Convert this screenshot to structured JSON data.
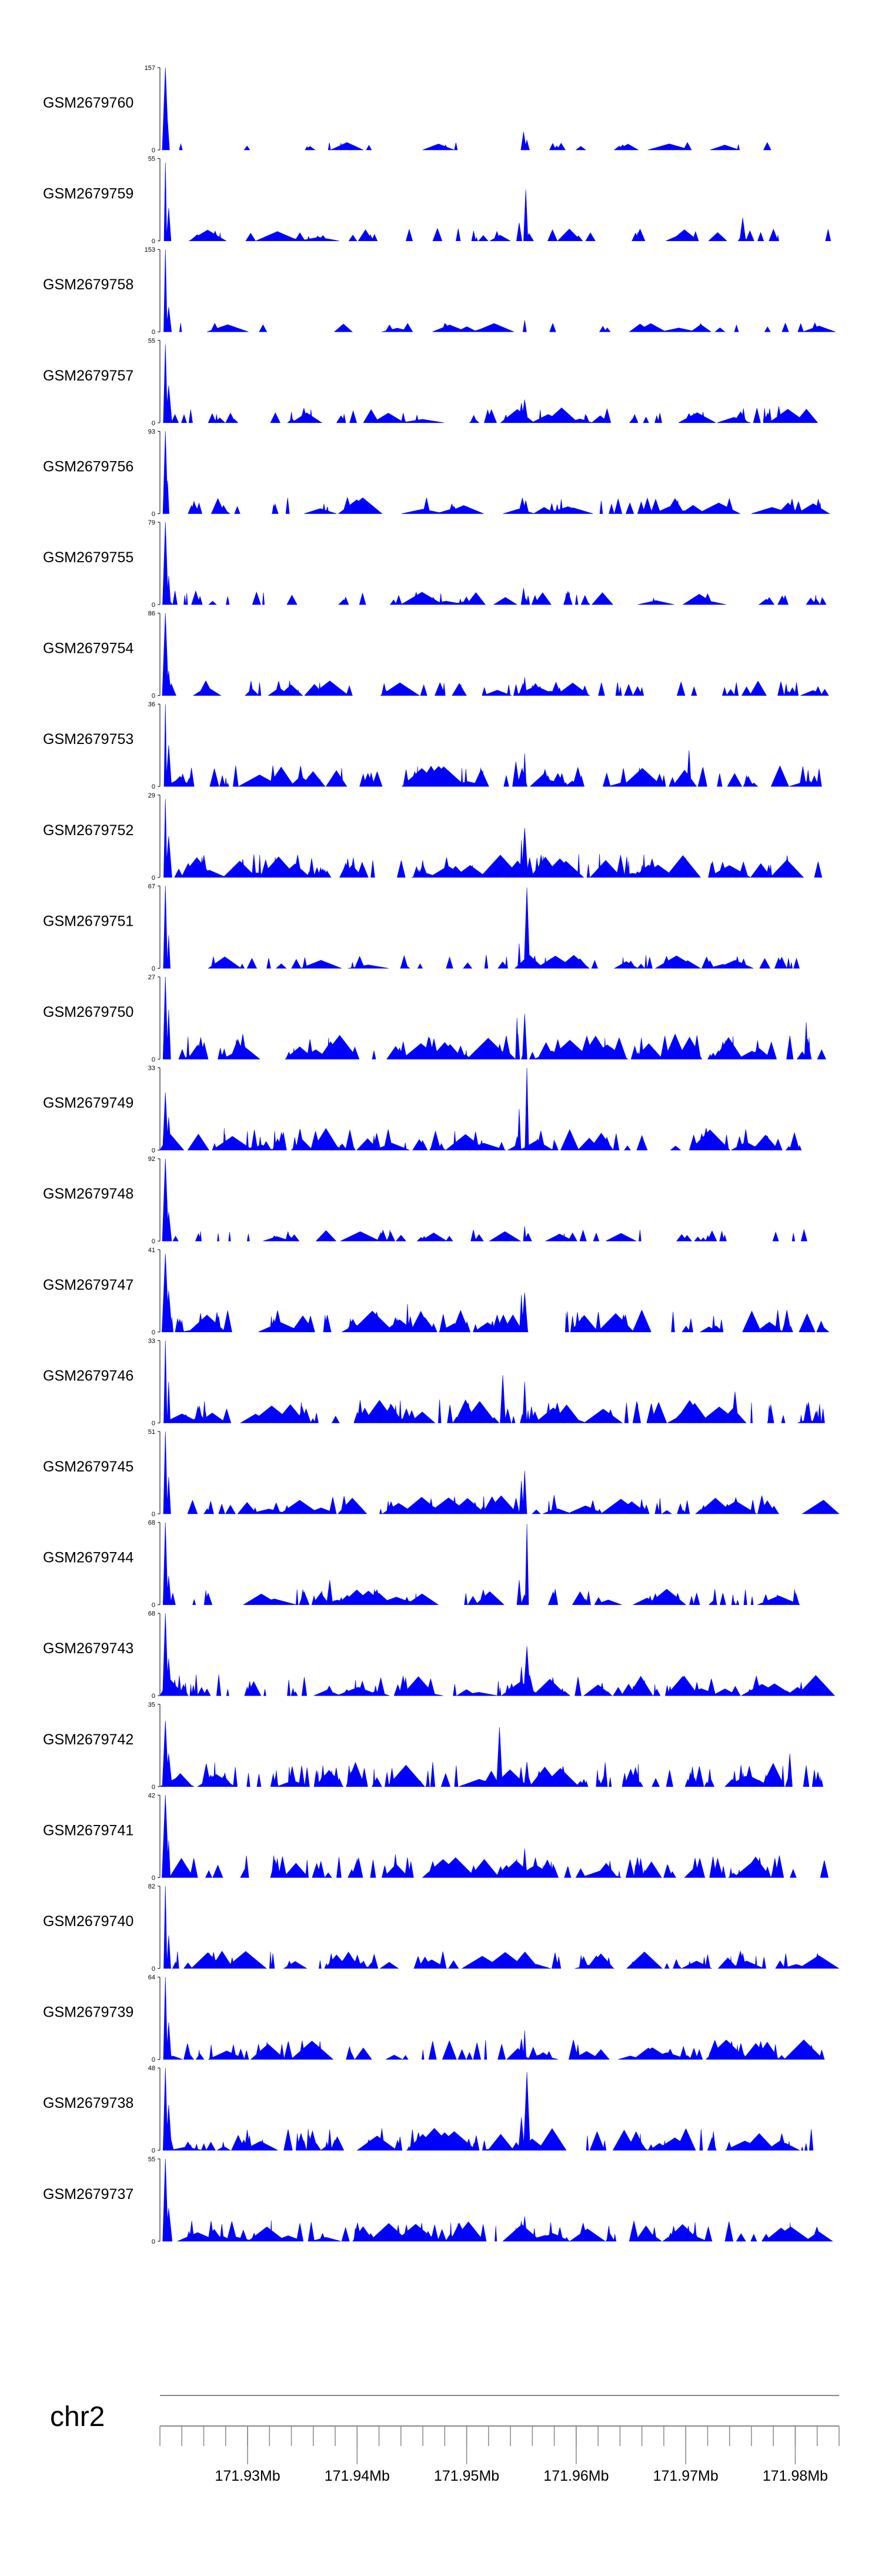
{
  "chart_data": {
    "type": "area",
    "chromosome": "chr2",
    "x_range": [
      171.922,
      171.984
    ],
    "x_ticks": [
      171.93,
      171.94,
      171.95,
      171.96,
      171.97,
      171.98
    ],
    "x_tick_labels": [
      "171.93Mb",
      "171.94Mb",
      "171.95Mb",
      "171.96Mb",
      "171.97Mb",
      "171.98Mb"
    ],
    "minor_tick_step": 0.002,
    "fill_color": "#0000ff",
    "series": [
      {
        "label": "GSM2679760",
        "ymax": 157,
        "ymin_label": "0",
        "ymax_label": "157",
        "seed": 60,
        "density": 0.4,
        "profile": [
          [
            171.9225,
            1.0
          ],
          [
            171.9227,
            0.35
          ],
          [
            171.9552,
            0.22
          ],
          [
            171.9555,
            0.12
          ],
          [
            171.9735,
            0.06
          ]
        ]
      },
      {
        "label": "GSM2679759",
        "ymax": 55,
        "ymin_label": "0",
        "ymax_label": "55",
        "seed": 59,
        "density": 0.8,
        "profile": [
          [
            171.9225,
            0.95
          ],
          [
            171.9228,
            0.4
          ],
          [
            171.9554,
            0.62
          ],
          [
            171.9548,
            0.22
          ],
          [
            171.9752,
            0.28
          ],
          [
            171.983,
            0.14
          ]
        ]
      },
      {
        "label": "GSM2679758",
        "ymax": 153,
        "ymin_label": "0",
        "ymax_label": "153",
        "seed": 58,
        "density": 0.5,
        "profile": [
          [
            171.9225,
            1.0
          ],
          [
            171.9228,
            0.3
          ],
          [
            171.9553,
            0.14
          ],
          [
            171.9805,
            0.1
          ]
        ]
      },
      {
        "label": "GSM2679757",
        "ymax": 55,
        "ymin_label": "0",
        "ymax_label": "55",
        "seed": 57,
        "density": 1.0,
        "profile": [
          [
            171.9225,
            0.95
          ],
          [
            171.9228,
            0.45
          ],
          [
            171.9553,
            0.28
          ],
          [
            171.955,
            0.24
          ],
          [
            171.9785,
            0.2
          ]
        ]
      },
      {
        "label": "GSM2679756",
        "ymax": 93,
        "ymin_label": "0",
        "ymax_label": "93",
        "seed": 56,
        "density": 1.1,
        "profile": [
          [
            171.9225,
            1.0
          ],
          [
            171.9227,
            0.4
          ],
          [
            171.9554,
            0.16
          ]
        ]
      },
      {
        "label": "GSM2679755",
        "ymax": 79,
        "ymin_label": "0",
        "ymax_label": "79",
        "seed": 55,
        "density": 0.9,
        "profile": [
          [
            171.9225,
            1.0
          ],
          [
            171.9228,
            0.35
          ],
          [
            171.9552,
            0.2
          ],
          [
            171.9405,
            0.14
          ]
        ]
      },
      {
        "label": "GSM2679754",
        "ymax": 86,
        "ymin_label": "0",
        "ymax_label": "86",
        "seed": 54,
        "density": 1.0,
        "profile": [
          [
            171.9225,
            1.0
          ],
          [
            171.9228,
            0.3
          ],
          [
            171.9553,
            0.22
          ],
          [
            171.956,
            0.12
          ]
        ]
      },
      {
        "label": "GSM2679753",
        "ymax": 36,
        "ymin_label": "0",
        "ymax_label": "36",
        "seed": 53,
        "density": 1.5,
        "profile": [
          [
            171.9225,
            1.0
          ],
          [
            171.9228,
            0.5
          ],
          [
            171.9553,
            0.4
          ],
          [
            171.9545,
            0.3
          ],
          [
            171.9703,
            0.44
          ]
        ]
      },
      {
        "label": "GSM2679752",
        "ymax": 29,
        "ymin_label": "0",
        "ymax_label": "29",
        "seed": 52,
        "density": 1.7,
        "profile": [
          [
            171.9225,
            0.95
          ],
          [
            171.9228,
            0.5
          ],
          [
            171.9553,
            0.6
          ],
          [
            171.955,
            0.45
          ]
        ]
      },
      {
        "label": "GSM2679751",
        "ymax": 67,
        "ymin_label": "0",
        "ymax_label": "67",
        "seed": 51,
        "density": 0.9,
        "profile": [
          [
            171.9225,
            1.0
          ],
          [
            171.9228,
            0.4
          ],
          [
            171.9555,
            0.98
          ],
          [
            171.9548,
            0.3
          ]
        ]
      },
      {
        "label": "GSM2679750",
        "ymax": 27,
        "ymin_label": "0",
        "ymax_label": "27",
        "seed": 50,
        "density": 1.9,
        "profile": [
          [
            171.9225,
            1.0
          ],
          [
            171.9228,
            0.6
          ],
          [
            171.9553,
            0.55
          ],
          [
            171.9546,
            0.5
          ],
          [
            171.981,
            0.45
          ]
        ]
      },
      {
        "label": "GSM2679749",
        "ymax": 33,
        "ymin_label": "0",
        "ymax_label": "33",
        "seed": 49,
        "density": 1.6,
        "profile": [
          [
            171.9225,
            0.7
          ],
          [
            171.9228,
            0.4
          ],
          [
            171.9555,
            1.0
          ],
          [
            171.9548,
            0.5
          ]
        ]
      },
      {
        "label": "GSM2679748",
        "ymax": 92,
        "ymin_label": "0",
        "ymax_label": "92",
        "seed": 48,
        "density": 0.8,
        "profile": [
          [
            171.9225,
            1.0
          ],
          [
            171.9228,
            0.35
          ],
          [
            171.9553,
            0.18
          ]
        ]
      },
      {
        "label": "GSM2679747",
        "ymax": 41,
        "ymin_label": "0",
        "ymax_label": "41",
        "seed": 47,
        "density": 1.6,
        "profile": [
          [
            171.9225,
            0.95
          ],
          [
            171.9228,
            0.5
          ],
          [
            171.9553,
            0.48
          ],
          [
            171.955,
            0.45
          ],
          [
            171.9446,
            0.34
          ]
        ]
      },
      {
        "label": "GSM2679746",
        "ymax": 33,
        "ymin_label": "0",
        "ymax_label": "33",
        "seed": 46,
        "density": 1.7,
        "profile": [
          [
            171.9225,
            1.0
          ],
          [
            171.9228,
            0.5
          ],
          [
            171.9533,
            0.58
          ],
          [
            171.9553,
            0.5
          ],
          [
            171.9745,
            0.38
          ]
        ]
      },
      {
        "label": "GSM2679745",
        "ymax": 51,
        "ymin_label": "0",
        "ymax_label": "51",
        "seed": 45,
        "density": 1.3,
        "profile": [
          [
            171.9225,
            1.0
          ],
          [
            171.9228,
            0.45
          ],
          [
            171.9553,
            0.52
          ],
          [
            171.955,
            0.4
          ]
        ]
      },
      {
        "label": "GSM2679744",
        "ymax": 68,
        "ymin_label": "0",
        "ymax_label": "68",
        "seed": 44,
        "density": 1.1,
        "profile": [
          [
            171.9225,
            1.0
          ],
          [
            171.9228,
            0.35
          ],
          [
            171.9555,
            0.98
          ],
          [
            171.9548,
            0.3
          ],
          [
            171.9375,
            0.3
          ]
        ]
      },
      {
        "label": "GSM2679743",
        "ymax": 68,
        "ymin_label": "0",
        "ymax_label": "68",
        "seed": 43,
        "density": 1.5,
        "profile": [
          [
            171.9225,
            1.0
          ],
          [
            171.9228,
            0.45
          ],
          [
            171.9555,
            0.6
          ],
          [
            171.955,
            0.35
          ]
        ]
      },
      {
        "label": "GSM2679742",
        "ymax": 35,
        "ymin_label": "0",
        "ymax_label": "35",
        "seed": 42,
        "density": 1.8,
        "profile": [
          [
            171.9225,
            0.8
          ],
          [
            171.9228,
            0.4
          ],
          [
            171.953,
            0.72
          ],
          [
            171.9795,
            0.4
          ],
          [
            171.9555,
            0.3
          ]
        ]
      },
      {
        "label": "GSM2679741",
        "ymax": 42,
        "ymin_label": "0",
        "ymax_label": "42",
        "seed": 41,
        "density": 1.6,
        "profile": [
          [
            171.9225,
            1.0
          ],
          [
            171.9228,
            0.45
          ],
          [
            171.9553,
            0.35
          ],
          [
            171.9435,
            0.28
          ]
        ]
      },
      {
        "label": "GSM2679740",
        "ymax": 82,
        "ymin_label": "0",
        "ymax_label": "82",
        "seed": 40,
        "density": 1.2,
        "profile": [
          [
            171.9225,
            1.0
          ],
          [
            171.9228,
            0.4
          ],
          [
            171.9553,
            0.15
          ]
        ]
      },
      {
        "label": "GSM2679739",
        "ymax": 64,
        "ymin_label": "0",
        "ymax_label": "64",
        "seed": 39,
        "density": 1.4,
        "profile": [
          [
            171.9225,
            1.0
          ],
          [
            171.9228,
            0.45
          ],
          [
            171.9553,
            0.35
          ],
          [
            171.955,
            0.25
          ]
        ]
      },
      {
        "label": "GSM2679738",
        "ymax": 48,
        "ymin_label": "0",
        "ymax_label": "48",
        "seed": 38,
        "density": 1.6,
        "profile": [
          [
            171.9225,
            1.0
          ],
          [
            171.9228,
            0.55
          ],
          [
            171.9555,
            0.95
          ],
          [
            171.955,
            0.4
          ]
        ]
      },
      {
        "label": "GSM2679737",
        "ymax": 55,
        "ymin_label": "0",
        "ymax_label": "55",
        "seed": 37,
        "density": 1.5,
        "profile": [
          [
            171.9225,
            1.0
          ],
          [
            171.9228,
            0.4
          ],
          [
            171.9553,
            0.3
          ],
          [
            171.9445,
            0.2
          ]
        ]
      }
    ]
  }
}
